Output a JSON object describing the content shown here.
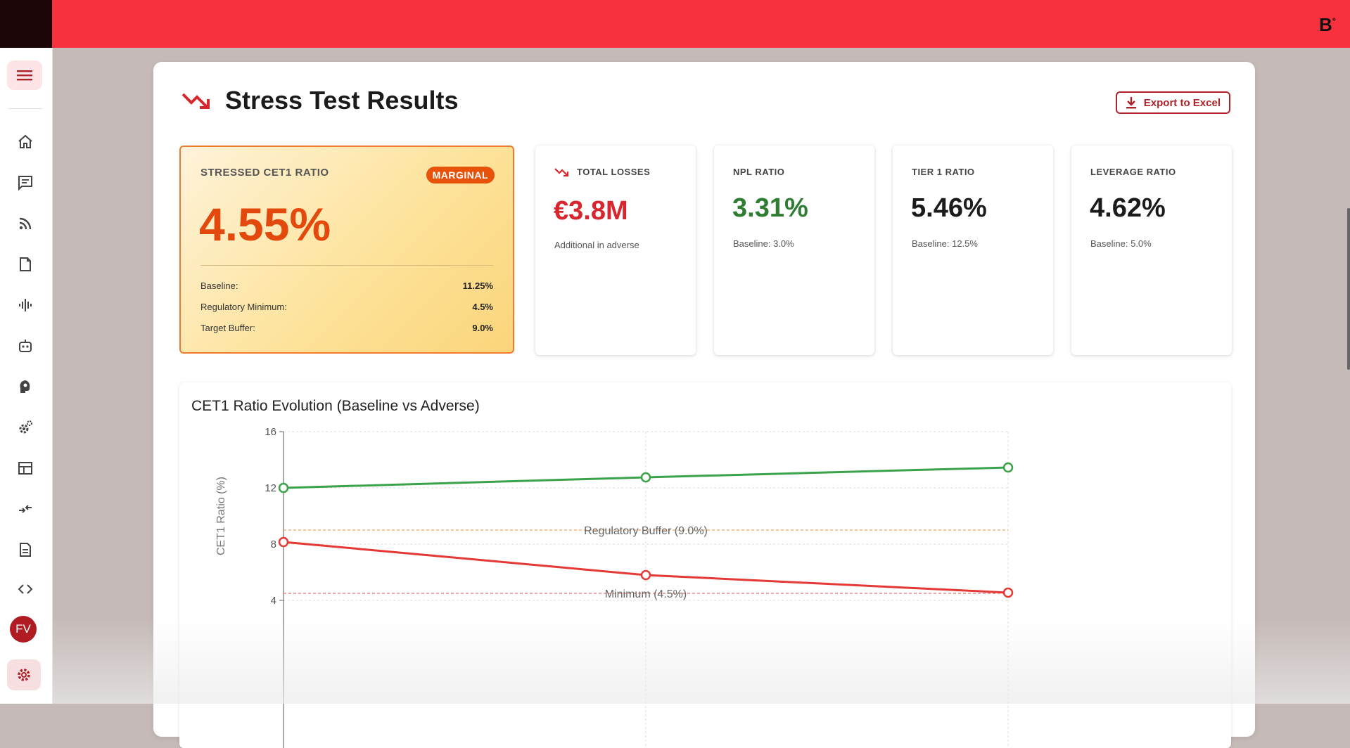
{
  "brand": {
    "logo": "B",
    "mark": "°"
  },
  "sidebar": {
    "icons": [
      "menu-icon",
      "home-icon",
      "chat-icon",
      "rss-icon",
      "document-icon",
      "waveform-icon",
      "robot-icon",
      "brain-icon",
      "gears-icon",
      "table-icon",
      "compare-arrows-icon",
      "file-icon",
      "code-icon",
      "gear-icon"
    ],
    "avatar_initials": "FV"
  },
  "header": {
    "title": "Stress Test Results",
    "export_label": "Export to Excel"
  },
  "hero": {
    "label": "STRESSED CET1 RATIO",
    "badge": "MARGINAL",
    "value": "4.55%",
    "rows": [
      {
        "label": "Baseline:",
        "value": "11.25%"
      },
      {
        "label": "Regulatory Minimum:",
        "value": "4.5%"
      },
      {
        "label": "Target Buffer:",
        "value": "9.0%"
      }
    ]
  },
  "cards": [
    {
      "label": "TOTAL LOSSES",
      "value": "€3.8M",
      "sub": "Additional in adverse",
      "color": "#d8262e"
    },
    {
      "label": "NPL RATIO",
      "value": "3.31%",
      "sub": "Baseline: 3.0%",
      "color": "#2e7d32"
    },
    {
      "label": "TIER 1 RATIO",
      "value": "5.46%",
      "sub": "Baseline: 12.5%",
      "color": "#1b1b1b"
    },
    {
      "label": "LEVERAGE RATIO",
      "value": "4.62%",
      "sub": "Baseline: 5.0%",
      "color": "#1b1b1b"
    }
  ],
  "chart_data": {
    "type": "line",
    "title": "CET1 Ratio Evolution (Baseline vs Adverse)",
    "ylabel": "CET1 Ratio (%)",
    "x": [
      0,
      1,
      2
    ],
    "yticks": [
      4,
      8,
      12,
      16
    ],
    "ylim": [
      0,
      16
    ],
    "series": [
      {
        "values": [
          12,
          12.75,
          13.45
        ],
        "color": "#3aa34a"
      },
      {
        "values": [
          8.15,
          5.8,
          4.55
        ],
        "color": "#e53935"
      }
    ],
    "reference_lines": [
      {
        "label": "Regulatory Buffer (9.0%)",
        "value": 9.0,
        "color": "#f0a35e"
      },
      {
        "label": "Minimum (4.5%)",
        "value": 4.5,
        "color": "#e57373"
      }
    ],
    "grid": true
  },
  "colors": {
    "accent": "#f7313d",
    "brand_dark": "#b0222a",
    "warning": "#e8530b"
  }
}
